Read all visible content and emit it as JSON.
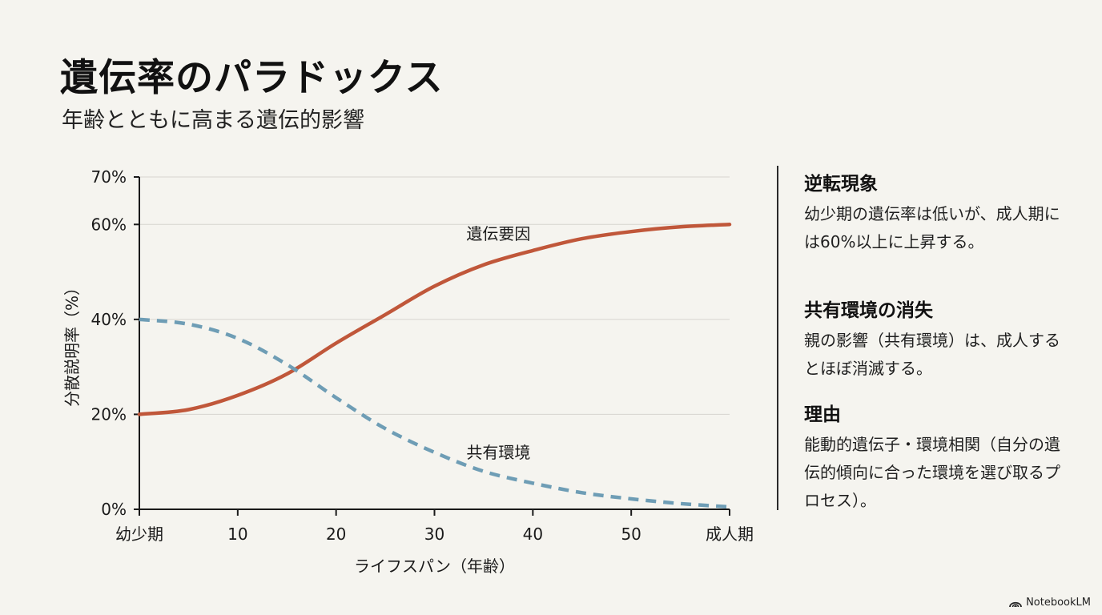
{
  "header": {
    "title": "遺伝率のパラドックス",
    "subtitle": "年齢とともに高まる遺伝的影響"
  },
  "chart_data": {
    "type": "line",
    "xlabel": "ライフスパン（年齢）",
    "ylabel": "分散説明率（%）",
    "xlim": [
      0,
      60
    ],
    "ylim": [
      0,
      70
    ],
    "x_ticks": [
      {
        "value": 0,
        "label": "幼少期"
      },
      {
        "value": 10,
        "label": "10"
      },
      {
        "value": 20,
        "label": "20"
      },
      {
        "value": 30,
        "label": "30"
      },
      {
        "value": 40,
        "label": "40"
      },
      {
        "value": 50,
        "label": "50"
      },
      {
        "value": 60,
        "label": "成人期"
      }
    ],
    "y_ticks": [
      {
        "value": 0,
        "label": "0%"
      },
      {
        "value": 20,
        "label": "20%"
      },
      {
        "value": 40,
        "label": "40%"
      },
      {
        "value": 60,
        "label": "60%"
      },
      {
        "value": 70,
        "label": "70%"
      }
    ],
    "grid": true,
    "series": [
      {
        "name": "遺伝要因",
        "color": "#c0573a",
        "style": "solid",
        "x": [
          0,
          5,
          10,
          15,
          20,
          25,
          30,
          35,
          40,
          45,
          50,
          55,
          60
        ],
        "y": [
          20,
          21,
          24,
          28.5,
          35,
          41,
          47,
          51.5,
          54.5,
          57,
          58.5,
          59.5,
          60
        ]
      },
      {
        "name": "共有環境",
        "color": "#6e9db5",
        "style": "dashed",
        "x": [
          0,
          5,
          10,
          15,
          20,
          25,
          30,
          35,
          40,
          45,
          50,
          55,
          60
        ],
        "y": [
          40,
          39,
          36,
          30.5,
          23.5,
          17,
          12,
          8,
          5.5,
          3.5,
          2.2,
          1.2,
          0.5
        ]
      }
    ],
    "series_labels": [
      {
        "series": "遺伝要因",
        "x": 36.5,
        "y": 58
      },
      {
        "series": "共有環境",
        "x": 36.5,
        "y": 12
      }
    ]
  },
  "sidebar": {
    "sections": [
      {
        "heading": "逆転現象",
        "body": "幼少期の遺伝率は低いが、成人期には60%以上に上昇する。"
      },
      {
        "heading": "共有環境の消失",
        "body": "親の影響（共有環境）は、成人するとほぼ消滅する。"
      },
      {
        "heading": "理由",
        "body": "能動的遺伝子・環境相関（自分の遺伝的傾向に合った環境を選び取るプロセス）。"
      }
    ]
  },
  "brand": {
    "name": "NotebookLM",
    "icon": "notebooklm-logo-icon"
  }
}
